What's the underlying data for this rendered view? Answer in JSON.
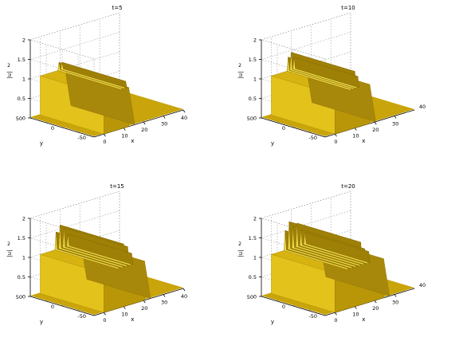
{
  "chart_data": [
    {
      "type": "surface",
      "title": "t=5",
      "xlabel": "x",
      "ylabel": "y",
      "zlabel": "|u|",
      "zlabel_exp": "2",
      "xlim": [
        -5,
        40
      ],
      "ylim": [
        -50,
        50
      ],
      "zlim": [
        0,
        2
      ],
      "x_ticks": [
        "0",
        "10",
        "20",
        "30",
        "40"
      ],
      "y_ticks": [
        "50",
        "0",
        "-50"
      ],
      "z_ticks": [
        "0",
        "0.5",
        "1",
        "1.5",
        "2"
      ],
      "grid": true,
      "front": {
        "x_start": 0,
        "x_end": 12.5,
        "amplitude": 1.0,
        "ripples": [
          {
            "x": 9.5,
            "height": 0.2
          },
          {
            "x": 11.0,
            "height": 0.18
          }
        ]
      }
    },
    {
      "type": "surface",
      "title": "t=10",
      "xlabel": "x",
      "ylabel": "y",
      "zlabel": "|u|",
      "zlabel_exp": "2",
      "xlim": [
        -5,
        40
      ],
      "ylim": [
        -50,
        50
      ],
      "zlim": [
        0,
        2
      ],
      "x_ticks": [
        "0",
        "10",
        "20",
        "30"
      ],
      "y_ticks": [
        "50",
        "0",
        "-50"
      ],
      "z_ticks": [
        "0",
        "0.5",
        "1",
        "1.5",
        "2"
      ],
      "extra_x_tick": "40",
      "grid": true,
      "front": {
        "x_start": 0,
        "x_end": 17.5,
        "amplitude": 1.0,
        "ripples": [
          {
            "x": 8.5,
            "height": 0.35
          },
          {
            "x": 10.0,
            "height": 0.45
          },
          {
            "x": 11.5,
            "height": 0.3
          }
        ]
      }
    },
    {
      "type": "surface",
      "title": "t=15",
      "xlabel": "x",
      "ylabel": "y",
      "zlabel": "|u|",
      "zlabel_exp": "2",
      "xlim": [
        -5,
        40
      ],
      "ylim": [
        -50,
        50
      ],
      "zlim": [
        0,
        2
      ],
      "x_ticks": [
        "0",
        "10",
        "20",
        "30",
        "40"
      ],
      "y_ticks": [
        "50",
        "0",
        "-50"
      ],
      "z_ticks": [
        "0",
        "0.5",
        "1",
        "1.5",
        "2"
      ],
      "grid": true,
      "front": {
        "x_start": 0,
        "x_end": 20.5,
        "amplitude": 1.0,
        "ripples": [
          {
            "x": 8.0,
            "height": 0.45
          },
          {
            "x": 10.0,
            "height": 0.6
          },
          {
            "x": 12.0,
            "height": 0.5
          },
          {
            "x": 14.0,
            "height": 0.3
          }
        ]
      }
    },
    {
      "type": "surface",
      "title": "t=20",
      "xlabel": "x",
      "ylabel": "y",
      "zlabel": "|u|",
      "zlabel_exp": "2",
      "xlim": [
        -5,
        40
      ],
      "ylim": [
        -50,
        50
      ],
      "zlim": [
        0,
        2
      ],
      "x_ticks": [
        "0",
        "10",
        "20",
        "30"
      ],
      "y_ticks": [
        "50",
        "0",
        "-50"
      ],
      "z_ticks": [
        "0",
        "0.5",
        "1",
        "1.5",
        "2"
      ],
      "extra_x_tick": "40",
      "grid": true,
      "front": {
        "x_start": 0,
        "x_end": 24.5,
        "amplitude": 1.0,
        "ripples": [
          {
            "x": 7.0,
            "height": 0.5
          },
          {
            "x": 9.0,
            "height": 0.7
          },
          {
            "x": 11.0,
            "height": 0.55
          },
          {
            "x": 13.0,
            "height": 0.6
          },
          {
            "x": 15.0,
            "height": 0.4
          },
          {
            "x": 17.0,
            "height": 0.3
          }
        ]
      }
    }
  ]
}
